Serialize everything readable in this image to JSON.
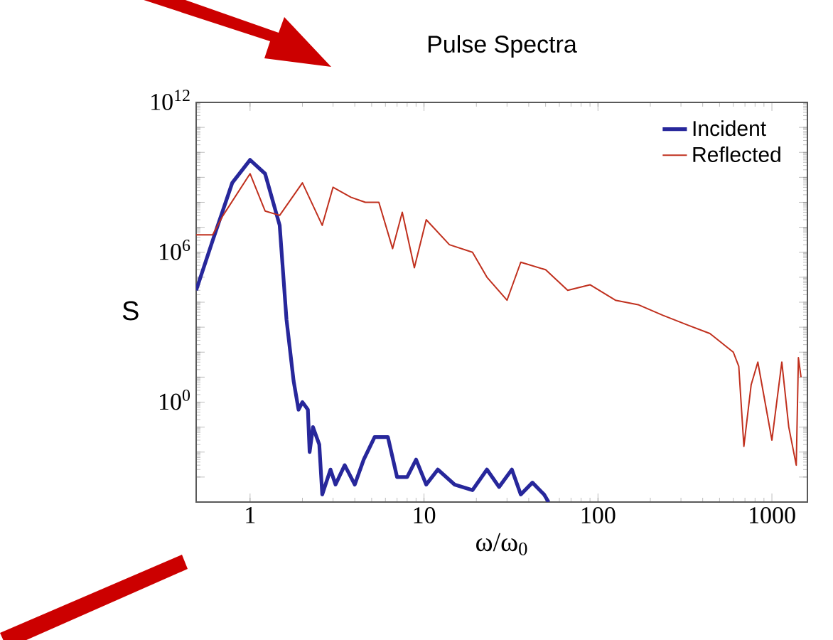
{
  "chart_data": {
    "type": "line",
    "title": "Pulse Spectra",
    "xlabel": "ω/ω$_{0}$",
    "ylabel": "S",
    "log": "xy",
    "xlim": [
      0.49,
      1600
    ],
    "ylim": [
      0.0001,
      1000000000000.0
    ],
    "xticks": [
      1,
      10,
      100,
      1000
    ],
    "yticks": [
      {
        "value": 0.001,
        "label": null
      },
      {
        "value": 0.01,
        "label": null
      },
      {
        "value": 0.1,
        "label": null
      },
      {
        "value": 1,
        "label": "10$^{0}$"
      },
      {
        "value": 10.0,
        "label": null
      },
      {
        "value": 100.0,
        "label": null
      },
      {
        "value": 1000.0,
        "label": null
      },
      {
        "value": 10000.0,
        "label": null
      },
      {
        "value": 100000.0,
        "label": null
      },
      {
        "value": 1000000.0,
        "label": "10$^{6}$"
      },
      {
        "value": 10000000.0,
        "label": null
      },
      {
        "value": 100000000.0,
        "label": null
      },
      {
        "value": 1000000000.0,
        "label": null
      },
      {
        "value": 10000000000.0,
        "label": null
      },
      {
        "value": 100000000000.0,
        "label": null
      },
      {
        "value": 1000000000000.0,
        "label": "10$^{12}$"
      }
    ],
    "legend": "top right",
    "grid": false,
    "series": [
      {
        "name": "Incident",
        "color": "#27279b",
        "x": [
          0.49,
          0.61,
          0.79,
          1.0,
          1.22,
          1.48,
          1.62,
          1.78,
          1.9,
          2.0,
          2.15,
          2.2,
          2.3,
          2.5,
          2.6,
          2.9,
          3.1,
          3.5,
          4.0,
          4.5,
          5.2,
          6.2,
          7.0,
          8.0,
          9.0,
          10.3,
          12,
          15,
          19,
          23,
          27,
          32,
          36,
          42,
          49,
          52
        ],
        "values": [
          30000.0,
          3000000.0,
          600000000.0,
          5000000000.0,
          1400000000.0,
          12000000.0,
          2000.0,
          7,
          0.5,
          1,
          0.5,
          0.01,
          0.1,
          0.02,
          0.0002,
          0.002,
          0.0005,
          0.003,
          0.0005,
          0.005,
          0.04,
          0.04,
          0.001,
          0.001,
          0.005,
          0.0005,
          0.002,
          0.0005,
          0.0003,
          0.002,
          0.0004,
          0.002,
          0.0002,
          0.0006,
          0.0002,
          0.0001
        ]
      },
      {
        "name": "Reflected",
        "color": "#c0301e",
        "x": [
          0.49,
          0.61,
          0.7,
          1.0,
          1.22,
          1.48,
          2.0,
          2.6,
          3.0,
          3.8,
          4.6,
          5.5,
          6.6,
          7.5,
          8.8,
          10.3,
          14,
          19,
          23,
          30,
          36,
          50,
          67,
          90,
          126,
          170,
          236,
          330,
          440,
          600,
          645,
          690,
          760,
          830,
          1000,
          1140,
          1250,
          1380,
          1420,
          1470
        ],
        "values": [
          5000000.0,
          5000000.0,
          30000000.0,
          1400000000.0,
          45000000.0,
          30000000.0,
          600000000.0,
          12000000.0,
          400000000.0,
          160000000.0,
          100000000.0,
          100000000.0,
          1400000.0,
          40000000.0,
          240000.0,
          20000000.0,
          2000000.0,
          1000000.0,
          100000.0,
          12000.0,
          400000.0,
          200000.0,
          30000.0,
          50000.0,
          12000.0,
          8000.0,
          3000.0,
          1200.0,
          560,
          100,
          27,
          0.017,
          5,
          40,
          0.03,
          40,
          0.1,
          0.003,
          60,
          10
        ]
      }
    ]
  }
}
